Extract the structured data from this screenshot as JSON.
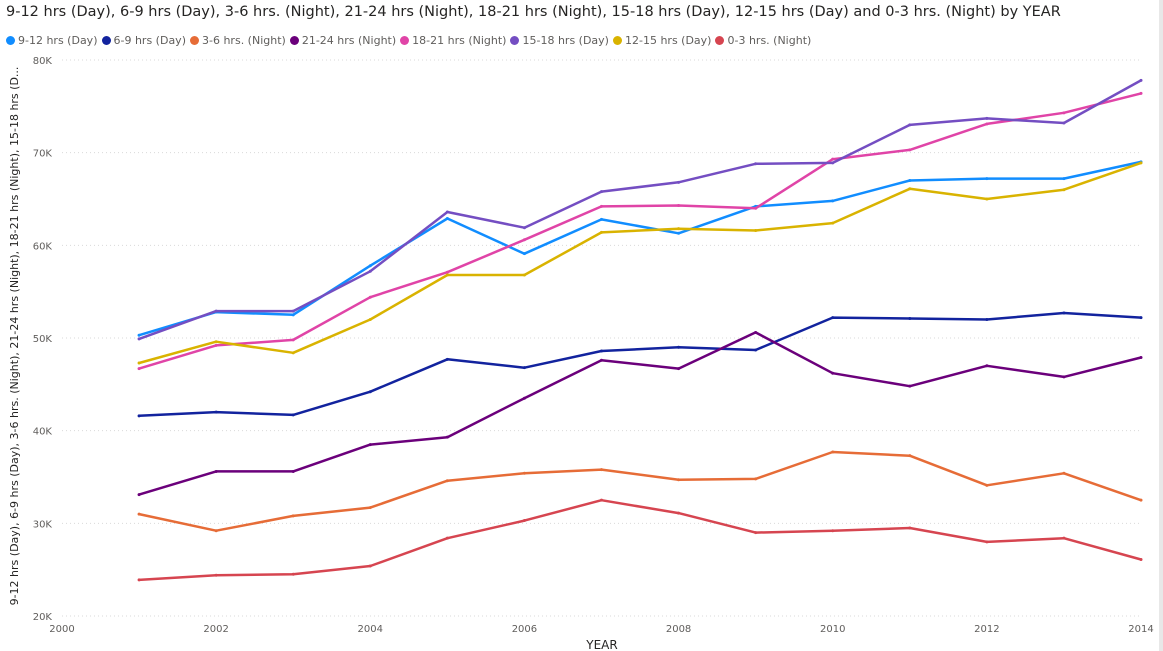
{
  "chart_data": {
    "type": "line",
    "title": "9-12 hrs (Day), 6-9 hrs (Day), 3-6 hrs. (Night), 21-24 hrs (Night), 18-21 hrs (Night), 15-18 hrs (Day), 12-15 hrs (Day) and 0-3 hrs. (Night) by YEAR",
    "xlabel": "YEAR",
    "ylabel": "9-12 hrs (Day), 6-9 hrs (Day), 3-6 hrs. (Night), 21-24 hrs (Night), 18-21 hrs (Night), 15-18 hrs (D...",
    "xlim": [
      2000,
      2014
    ],
    "ylim": [
      20000,
      80000
    ],
    "x_ticks": [
      2000,
      2002,
      2004,
      2006,
      2008,
      2010,
      2012,
      2014
    ],
    "y_ticks": [
      {
        "value": 20000,
        "label": "20K"
      },
      {
        "value": 30000,
        "label": "30K"
      },
      {
        "value": 40000,
        "label": "40K"
      },
      {
        "value": 50000,
        "label": "50K"
      },
      {
        "value": 60000,
        "label": "60K"
      },
      {
        "value": 70000,
        "label": "70K"
      },
      {
        "value": 80000,
        "label": "80K"
      }
    ],
    "grid": true,
    "legend_position": "top-left",
    "x": [
      2001,
      2002,
      2003,
      2004,
      2005,
      2006,
      2007,
      2008,
      2009,
      2010,
      2011,
      2012,
      2013,
      2014
    ],
    "series": [
      {
        "name": "9-12 hrs (Day)",
        "color": "#118DFF",
        "values": [
          50300,
          52800,
          52500,
          57800,
          62900,
          59100,
          62800,
          61300,
          64200,
          64800,
          67000,
          67200,
          67200,
          69000
        ]
      },
      {
        "name": "6-9 hrs (Day)",
        "color": "#12239E",
        "values": [
          41600,
          42000,
          41700,
          44200,
          47700,
          46800,
          48600,
          49000,
          48700,
          52200,
          52100,
          52000,
          52700,
          52200
        ]
      },
      {
        "name": "3-6 hrs. (Night)",
        "color": "#E66C37",
        "values": [
          31000,
          29200,
          30800,
          31700,
          34600,
          35400,
          35800,
          34700,
          34800,
          37700,
          37300,
          34100,
          35400,
          32500
        ]
      },
      {
        "name": "21-24 hrs (Night)",
        "color": "#6B007B",
        "values": [
          33100,
          35600,
          35600,
          38500,
          39300,
          43500,
          47600,
          46700,
          50600,
          46200,
          44800,
          47000,
          45800,
          47900
        ]
      },
      {
        "name": "18-21 hrs (Night)",
        "color": "#E044A7",
        "values": [
          46700,
          49200,
          49800,
          54400,
          57100,
          60600,
          64200,
          64300,
          64000,
          69300,
          70300,
          73100,
          74300,
          76400
        ]
      },
      {
        "name": "15-18 hrs (Day)",
        "color": "#744EC2",
        "values": [
          49900,
          52900,
          52900,
          57200,
          63600,
          61900,
          65800,
          66800,
          68800,
          68900,
          73000,
          73700,
          73200,
          77800
        ]
      },
      {
        "name": "12-15 hrs (Day)",
        "color": "#D9B300",
        "values": [
          47300,
          49600,
          48400,
          52000,
          56800,
          56800,
          61400,
          61800,
          61600,
          62400,
          66100,
          65000,
          66000,
          68900
        ]
      },
      {
        "name": "0-3 hrs. (Night)",
        "color": "#D64550",
        "values": [
          23900,
          24400,
          24500,
          25400,
          28400,
          30300,
          32500,
          31100,
          29000,
          29200,
          29500,
          28000,
          28400,
          26100
        ]
      }
    ]
  }
}
